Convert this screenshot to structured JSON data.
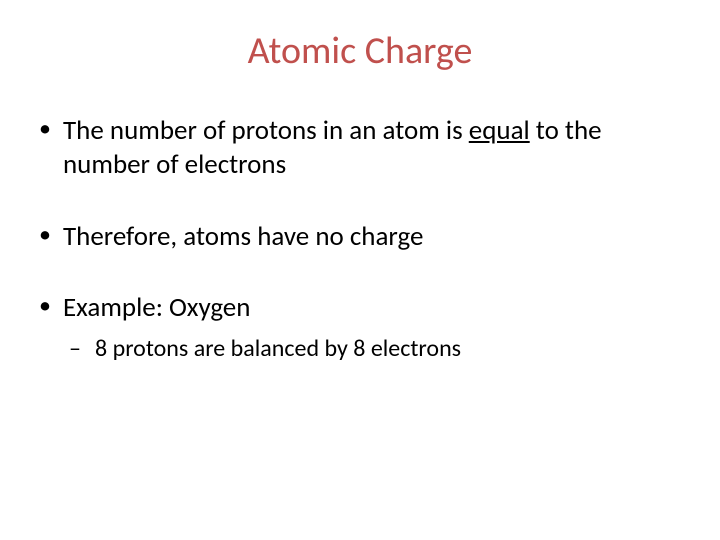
{
  "title": {
    "text": "Atomic Charge",
    "color": "#c0504d",
    "fontsize": 38
  },
  "bullets": {
    "item1_pre": "The number of protons in an atom is ",
    "item1_underlined": "equal",
    "item1_post": " to the number of electrons",
    "item2": "Therefore, atoms have no charge",
    "item3": "Example: Oxygen",
    "sub_item1": "8 protons are balanced by 8 electrons"
  },
  "styles": {
    "body_color": "#000000",
    "body_fontsize": 27,
    "sub_fontsize": 24,
    "background_color": "#ffffff"
  }
}
